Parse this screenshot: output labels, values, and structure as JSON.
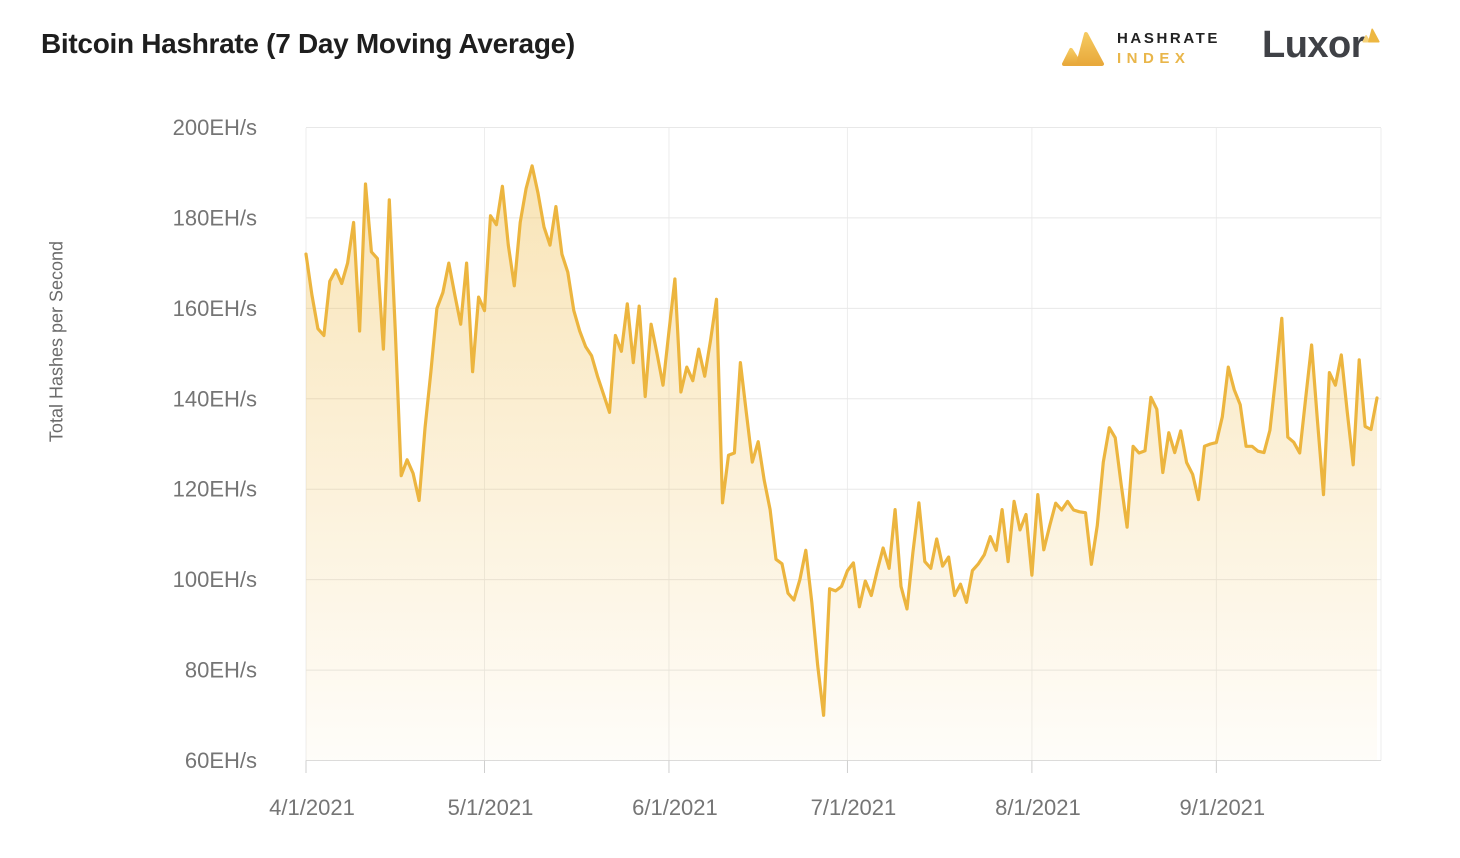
{
  "title": "Bitcoin Hashrate (7 Day Moving Average)",
  "branding": {
    "hashrate_index": {
      "line1": "HASHRATE",
      "line2": "INDEX"
    },
    "luxor": "Luxor"
  },
  "colors": {
    "line": "#ECB53F",
    "fill_top": "rgba(238,184,64,0.40)",
    "fill_bottom": "rgba(238,184,64,0.03)",
    "grid_horizontal": "#e8e8e8",
    "grid_vertical": "#ededed",
    "axis_line": "#dcdcdc",
    "tick_mark": "#cfcfcf",
    "tick_label": "#757575",
    "axis_title_text": "#6b6b6b",
    "title_text": "#1e1e1e",
    "brand_dark": "#222222",
    "brand_gold": "#E9B64A",
    "luxor_text": "#3f4146",
    "mark_gold_light": "#F5C95F",
    "mark_gold_dark": "#E8A93C"
  },
  "chart_data": {
    "type": "area",
    "title": "Bitcoin Hashrate (7 Day Moving Average)",
    "xlabel": "",
    "ylabel": "Total Hashes per Second",
    "unit": "EH/s",
    "grid": true,
    "legend": "none",
    "ylim": [
      60,
      200
    ],
    "y_tick_values": [
      200,
      180,
      160,
      140,
      120,
      100,
      80,
      60
    ],
    "y_tick_labels": [
      "200EH/s",
      "180EH/s",
      "160EH/s",
      "140EH/s",
      "120EH/s",
      "100EH/s",
      "80EH/s",
      "60EH/s"
    ],
    "x_tick_labels": [
      "4/1/2021",
      "5/1/2021",
      "6/1/2021",
      "7/1/2021",
      "8/1/2021",
      "9/1/2021"
    ],
    "x_tick_day_offsets": [
      0,
      30,
      61,
      91,
      122,
      153
    ],
    "x_start_date": "4/1/2021",
    "x_end_date": "9/28/2021",
    "frequency": "daily",
    "values": [
      172,
      163,
      155.5,
      154,
      166,
      168.5,
      165.5,
      170,
      179,
      155,
      187.5,
      172.5,
      171,
      151,
      184,
      155,
      123,
      126.5,
      123.5,
      117.5,
      133.5,
      146,
      160,
      163.5,
      170,
      163,
      156.5,
      170,
      146,
      162.5,
      159.5,
      180.5,
      178.5,
      187,
      174,
      165,
      179,
      186.5,
      191.5,
      185.5,
      178,
      174,
      182.5,
      172,
      168,
      159.5,
      155,
      151.5,
      149.5,
      145,
      141,
      137,
      154,
      150.5,
      161,
      148,
      160.5,
      140.5,
      156.5,
      150,
      143,
      155,
      166.5,
      141.5,
      147,
      144,
      151,
      145,
      153,
      162,
      117,
      127.5,
      128,
      148,
      137,
      126,
      130.5,
      122,
      115.5,
      104.5,
      103.5,
      97,
      95.5,
      100,
      106.5,
      95,
      81,
      70,
      98,
      97.5,
      98.5,
      102,
      103.7,
      94,
      99.7,
      96.5,
      102,
      107,
      102.5,
      115.5,
      98.5,
      93.5,
      106,
      117,
      104,
      102.5,
      109,
      103,
      105,
      96.5,
      99,
      95,
      102,
      103.5,
      105.5,
      109.5,
      106.5,
      115.5,
      104,
      117.3,
      111,
      114.4,
      101,
      118.8,
      106.6,
      112,
      116.9,
      115.4,
      117.3,
      115.4,
      115,
      114.8,
      103.4,
      112,
      126,
      133.6,
      131.4,
      121,
      111.6,
      129.5,
      128,
      128.5,
      140.3,
      137.7,
      123.7,
      132.5,
      128.1,
      132.9,
      125.9,
      123.3,
      117.7,
      129.5,
      130,
      130.3,
      136,
      147,
      142,
      138.7,
      129.5,
      129.5,
      128.4,
      128.1,
      133,
      145,
      157.8,
      131.5,
      130.4,
      128,
      140,
      151.9,
      135,
      118.8,
      145.8,
      143,
      149.7,
      137,
      125.4,
      148.6,
      133.9,
      133.2,
      140.2
    ]
  }
}
